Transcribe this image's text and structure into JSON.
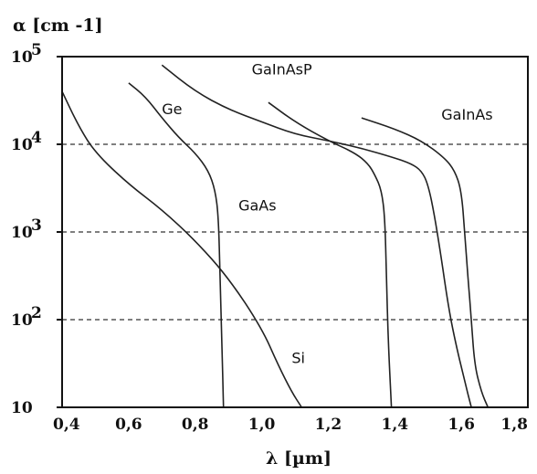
{
  "chart_data": {
    "type": "line",
    "xlabel": "λ [µm]",
    "ylabel": "α [cm -1]",
    "xlim": [
      0.4,
      1.8
    ],
    "ylim": [
      10,
      100000
    ],
    "yscale": "log",
    "grid": "horizontal dashed at 10^2, 10^3, 10^4",
    "x_ticks": [
      {
        "value": 0.4,
        "label": "0,4"
      },
      {
        "value": 0.6,
        "label": "0,6"
      },
      {
        "value": 0.8,
        "label": "0,8"
      },
      {
        "value": 1.0,
        "label": "1,0"
      },
      {
        "value": 1.2,
        "label": "1,2"
      },
      {
        "value": 1.4,
        "label": "1,4"
      },
      {
        "value": 1.6,
        "label": "1,6"
      },
      {
        "value": 1.8,
        "label": "1,8"
      }
    ],
    "y_ticks": [
      {
        "value": 10,
        "base": "10",
        "exp": ""
      },
      {
        "value": 100,
        "base": "10",
        "exp": "2"
      },
      {
        "value": 1000,
        "base": "10",
        "exp": "3"
      },
      {
        "value": 10000,
        "base": "10",
        "exp": "4"
      },
      {
        "value": 100000,
        "base": "10",
        "exp": "5"
      }
    ],
    "series": [
      {
        "name": "Si",
        "x": [
          0.4,
          0.45,
          0.5,
          0.6,
          0.7,
          0.8,
          0.9,
          1.0,
          1.05,
          1.09,
          1.12
        ],
        "y": [
          40000,
          16000,
          8000,
          3500,
          1800,
          800,
          300,
          80,
          30,
          15,
          10
        ]
      },
      {
        "name": "Ge",
        "x": [
          0.6,
          0.65,
          0.7,
          0.75,
          0.8,
          0.84,
          0.86,
          0.87,
          0.875,
          0.88,
          0.885
        ],
        "y": [
          50000,
          35000,
          20000,
          12000,
          8000,
          5000,
          3000,
          1500,
          300,
          60,
          10
        ]
      },
      {
        "name": "GaInAsP",
        "x": [
          0.7,
          0.8,
          0.9,
          1.0,
          1.1,
          1.2,
          1.3,
          1.4,
          1.45,
          1.48,
          1.5,
          1.52,
          1.54,
          1.56,
          1.58,
          1.61,
          1.63
        ],
        "y": [
          80000,
          40000,
          25000,
          18000,
          13000,
          11000,
          9000,
          7000,
          6000,
          5000,
          3500,
          1500,
          500,
          150,
          60,
          20,
          10
        ]
      },
      {
        "name": "GaAs",
        "x": [
          1.02,
          1.1,
          1.2,
          1.28,
          1.32,
          1.34,
          1.36,
          1.37,
          1.375,
          1.38,
          1.39
        ],
        "y": [
          30000,
          18000,
          11000,
          8000,
          6000,
          4500,
          3000,
          1500,
          300,
          60,
          10
        ]
      },
      {
        "name": "GaInAs",
        "x": [
          1.3,
          1.4,
          1.48,
          1.55,
          1.58,
          1.6,
          1.61,
          1.62,
          1.63,
          1.64,
          1.66,
          1.68
        ],
        "y": [
          20000,
          15000,
          11000,
          7000,
          5000,
          3000,
          1000,
          300,
          100,
          30,
          15,
          10
        ]
      }
    ],
    "labels": [
      {
        "text": "GaInAsP",
        "x": 0.97,
        "y": 63000
      },
      {
        "text": "Ge",
        "x": 0.7,
        "y": 22000
      },
      {
        "text": "GaInAs",
        "x": 1.54,
        "y": 19000
      },
      {
        "text": "GaAs",
        "x": 0.93,
        "y": 1750
      },
      {
        "text": "Si",
        "x": 1.09,
        "y": 32
      }
    ]
  }
}
